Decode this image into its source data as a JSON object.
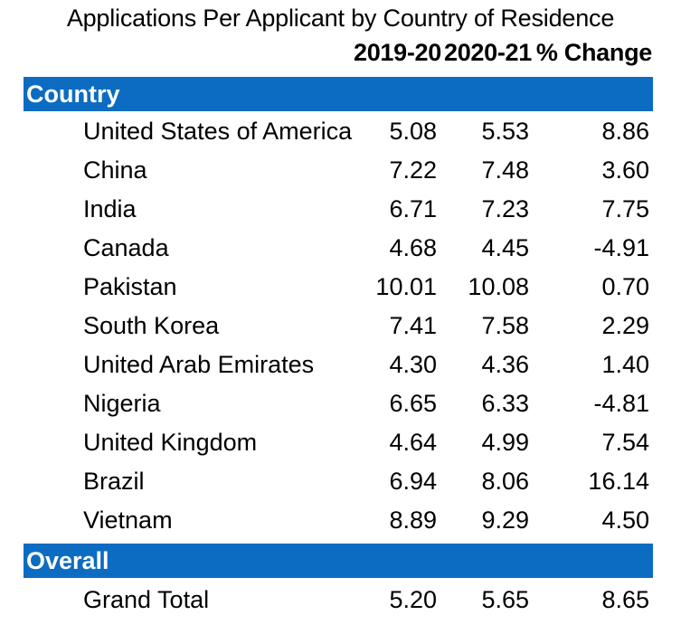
{
  "title": "Applications Per Applicant by Country of Residence",
  "chart_data": {
    "type": "table",
    "title": "Applications Per Applicant by Country of Residence",
    "columns": [
      "2019-20",
      "2020-21",
      "% Change"
    ],
    "groups": [
      {
        "label": "Country",
        "rows": [
          {
            "name": "United States of America",
            "values": [
              "5.08",
              "5.53",
              "8.86"
            ]
          },
          {
            "name": "China",
            "values": [
              "7.22",
              "7.48",
              "3.60"
            ]
          },
          {
            "name": "India",
            "values": [
              "6.71",
              "7.23",
              "7.75"
            ]
          },
          {
            "name": "Canada",
            "values": [
              "4.68",
              "4.45",
              "-4.91"
            ]
          },
          {
            "name": "Pakistan",
            "values": [
              "10.01",
              "10.08",
              "0.70"
            ]
          },
          {
            "name": "South Korea",
            "values": [
              "7.41",
              "7.58",
              "2.29"
            ]
          },
          {
            "name": "United Arab Emirates",
            "values": [
              "4.30",
              "4.36",
              "1.40"
            ]
          },
          {
            "name": "Nigeria",
            "values": [
              "6.65",
              "6.33",
              "-4.81"
            ]
          },
          {
            "name": "United Kingdom",
            "values": [
              "4.64",
              "4.99",
              "7.54"
            ]
          },
          {
            "name": "Brazil",
            "values": [
              "6.94",
              "8.06",
              "16.14"
            ]
          },
          {
            "name": "Vietnam",
            "values": [
              "8.89",
              "9.29",
              "4.50"
            ]
          }
        ]
      },
      {
        "label": "Overall",
        "rows": [
          {
            "name": "Grand Total",
            "values": [
              "5.20",
              "5.65",
              "8.65"
            ]
          }
        ]
      }
    ]
  },
  "colors": {
    "band": "#0b6cc2",
    "band_text": "#ffffff",
    "text": "#000000"
  }
}
